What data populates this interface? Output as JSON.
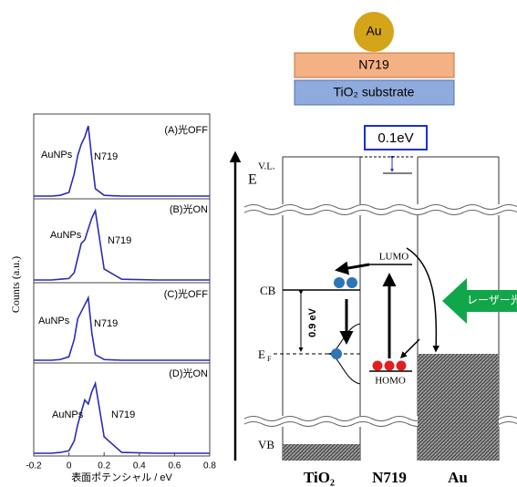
{
  "chart_data": [
    {
      "type": "line",
      "title": "(A)光OFF",
      "annotations": [
        "AuNPs",
        "N719"
      ],
      "ylabel": "Counts (a.u.)",
      "x": [
        -0.2,
        -0.1,
        -0.05,
        0,
        0.03,
        0.05,
        0.07,
        0.09,
        0.11,
        0.13,
        0.15,
        0.2,
        0.3,
        0.5,
        0.8
      ],
      "series": [
        {
          "color": "#2b2bb8",
          "values": [
            0,
            0,
            0.01,
            0.05,
            0.3,
            0.55,
            0.7,
            0.8,
            0.95,
            0.5,
            0.1,
            0.01,
            0,
            0,
            0
          ]
        }
      ],
      "xlim": [
        -0.2,
        0.8
      ],
      "ylim": [
        0,
        1
      ]
    },
    {
      "type": "line",
      "title": "(B)光ON",
      "annotations": [
        "AuNPs",
        "N719"
      ],
      "x": [
        -0.2,
        -0.1,
        -0.05,
        0,
        0.03,
        0.05,
        0.07,
        0.09,
        0.11,
        0.13,
        0.15,
        0.2,
        0.3,
        0.5,
        0.8
      ],
      "series": [
        {
          "color": "#2b2bb8",
          "values": [
            0,
            0,
            0.01,
            0.02,
            0.1,
            0.3,
            0.5,
            0.55,
            0.7,
            0.85,
            0.95,
            0.15,
            0.01,
            0,
            0
          ]
        }
      ],
      "xlim": [
        -0.2,
        0.8
      ],
      "ylim": [
        0,
        1
      ]
    },
    {
      "type": "line",
      "title": "(C)光OFF",
      "annotations": [
        "AuNPs",
        "N719"
      ],
      "x": [
        -0.2,
        -0.1,
        -0.05,
        0,
        0.03,
        0.05,
        0.07,
        0.09,
        0.11,
        0.13,
        0.15,
        0.2,
        0.3,
        0.5,
        0.8
      ],
      "series": [
        {
          "color": "#2b2bb8",
          "values": [
            0,
            0,
            0.01,
            0.05,
            0.3,
            0.6,
            0.7,
            0.8,
            0.9,
            0.4,
            0.08,
            0.01,
            0,
            0,
            0
          ]
        }
      ],
      "xlim": [
        -0.2,
        0.8
      ],
      "ylim": [
        0,
        1
      ]
    },
    {
      "type": "line",
      "title": "(D)光ON",
      "annotations": [
        "AuNPs",
        "N719"
      ],
      "xlabel": "表面ポテンシャル / eV",
      "x": [
        -0.2,
        -0.1,
        -0.05,
        0,
        0.03,
        0.05,
        0.07,
        0.09,
        0.11,
        0.13,
        0.15,
        0.2,
        0.3,
        0.5,
        0.8
      ],
      "series": [
        {
          "color": "#2b2bb8",
          "values": [
            0,
            0,
            0.01,
            0.03,
            0.15,
            0.35,
            0.5,
            0.65,
            0.6,
            0.75,
            0.85,
            0.2,
            0.01,
            0,
            0
          ]
        }
      ],
      "xlim": [
        -0.2,
        0.8
      ],
      "ylim": [
        0,
        1
      ],
      "xticks": [
        -0.2,
        0,
        0.2,
        0.4,
        0.6,
        0.8
      ]
    }
  ],
  "diagram": {
    "top_ball": "Au",
    "layer_1": "N719",
    "layer_2": "TiO₂ substrate",
    "vl_shift": "0.1eV",
    "vacuum_level": "V.L.",
    "energy_axis": "E",
    "cb": "CB",
    "fermi": "E",
    "fermi_sub": "F",
    "vb": "VB",
    "gap": "0.9 eV",
    "lumo": "LUMO",
    "homo": "HOMO",
    "laser": "レーザー光",
    "columns": [
      "TiO₂",
      "N719",
      "Au"
    ]
  }
}
